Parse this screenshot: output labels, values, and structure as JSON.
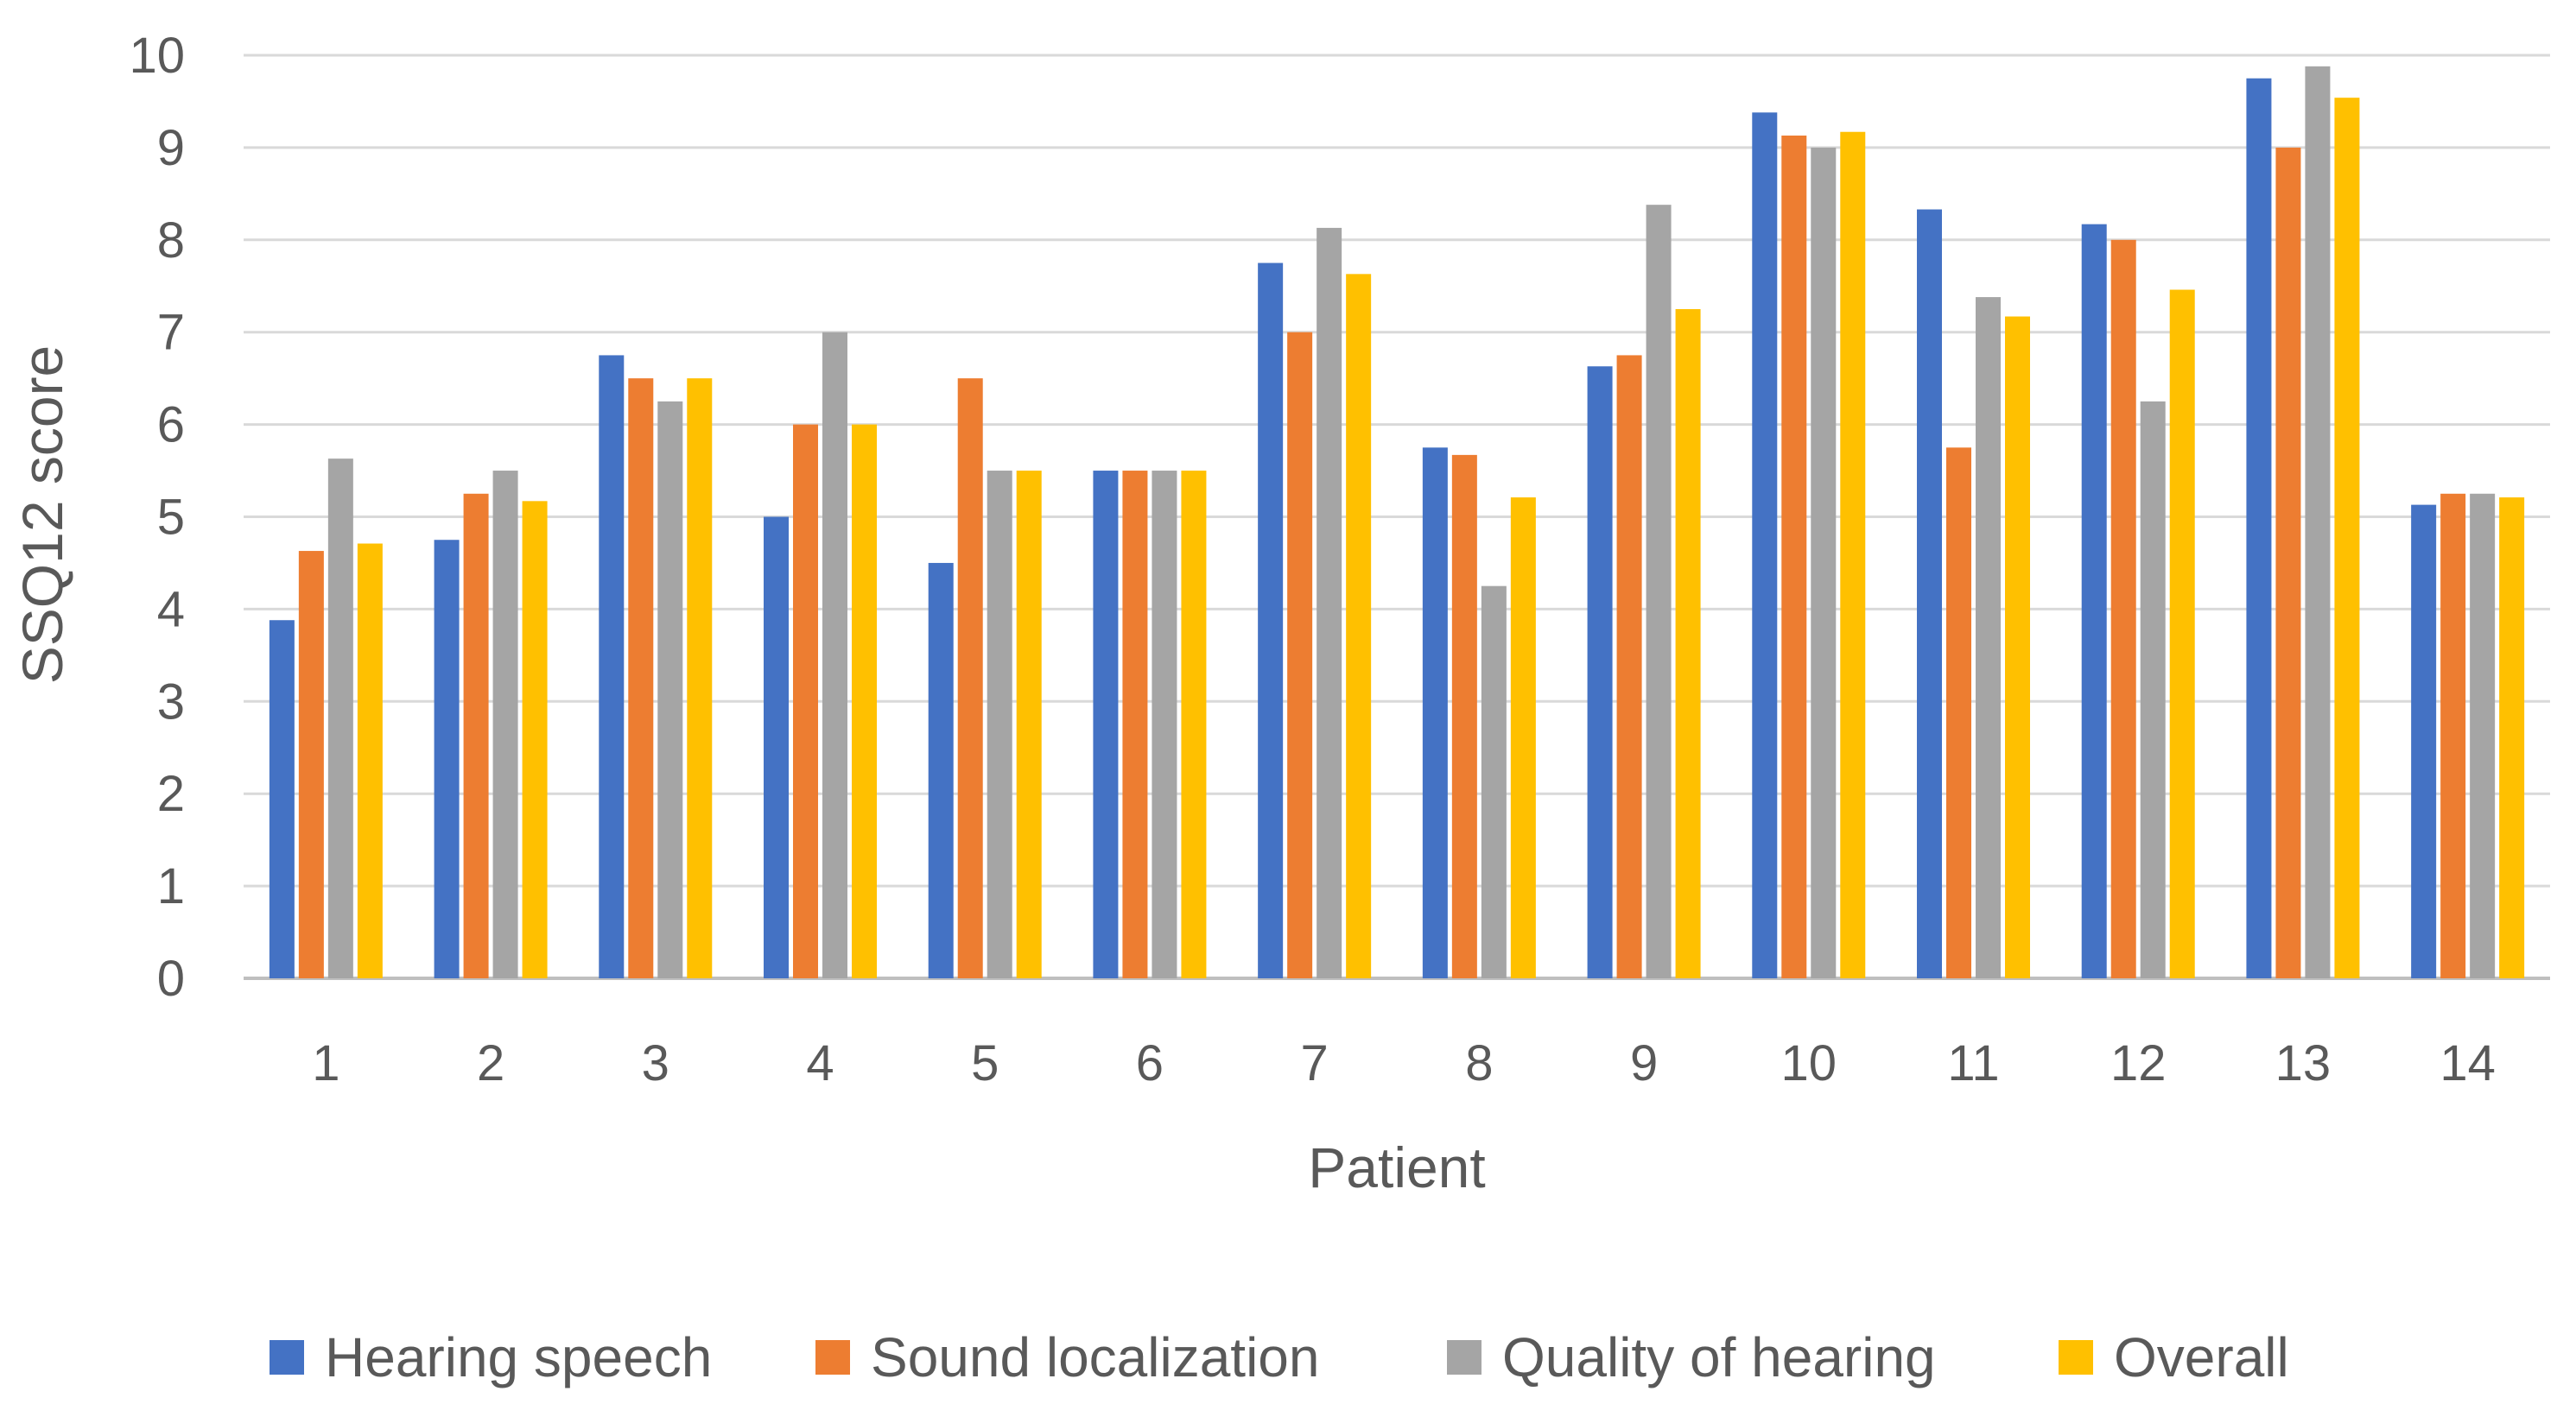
{
  "chart_data": {
    "type": "bar",
    "title": "",
    "xlabel": "Patient",
    "ylabel": "SSQ12 score",
    "ylim": [
      0,
      10
    ],
    "yticks": [
      0,
      1,
      2,
      3,
      4,
      5,
      6,
      7,
      8,
      9,
      10
    ],
    "grid": true,
    "legend_position": "bottom",
    "categories": [
      "1",
      "2",
      "3",
      "4",
      "5",
      "6",
      "7",
      "8",
      "9",
      "10",
      "11",
      "12",
      "13",
      "14"
    ],
    "series": [
      {
        "name": "Hearing speech",
        "color": "#4472C4",
        "values": [
          3.88,
          4.75,
          6.75,
          5.0,
          4.5,
          5.5,
          7.75,
          5.75,
          6.63,
          9.38,
          8.33,
          8.17,
          9.75,
          5.13
        ]
      },
      {
        "name": "Sound localization",
        "color": "#ED7D31",
        "values": [
          4.63,
          5.25,
          6.5,
          6.0,
          6.5,
          5.5,
          7.0,
          5.67,
          6.75,
          9.13,
          5.75,
          8.0,
          9.0,
          5.25
        ]
      },
      {
        "name": "Quality of hearing",
        "color": "#A5A5A5",
        "values": [
          5.63,
          5.5,
          6.25,
          7.0,
          5.5,
          5.5,
          8.13,
          4.25,
          8.38,
          9.0,
          7.38,
          6.25,
          9.88,
          5.25
        ]
      },
      {
        "name": "Overall",
        "color": "#FFC000",
        "values": [
          4.71,
          5.17,
          6.5,
          6.0,
          5.5,
          5.5,
          7.63,
          5.21,
          7.25,
          9.17,
          7.17,
          7.46,
          9.54,
          5.21
        ]
      }
    ]
  }
}
